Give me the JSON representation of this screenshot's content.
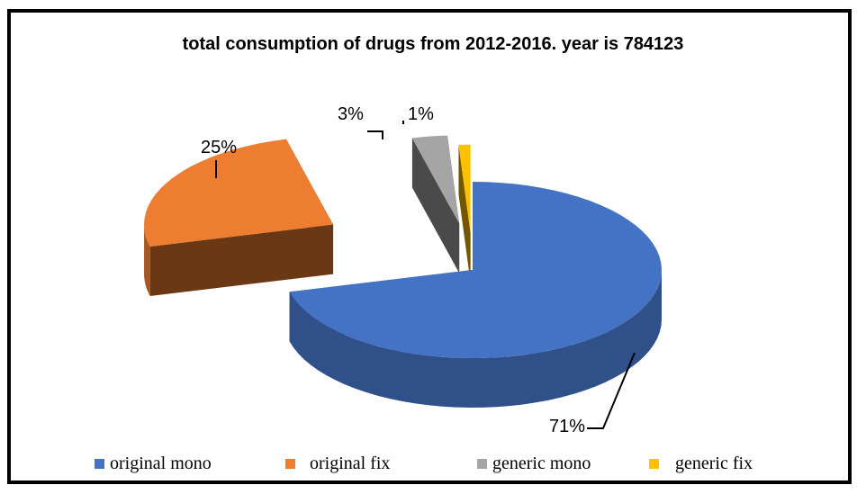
{
  "chart_data": {
    "type": "pie",
    "title": "total consumption of drugs from 2012-2016. year is 784123",
    "categories": [
      "original mono",
      "original fix",
      "generic mono",
      "generic fix"
    ],
    "values": [
      71,
      25,
      3,
      1
    ],
    "data_labels": [
      "71%",
      "25%",
      "3%",
      "1%"
    ],
    "colors": [
      "#4472C4",
      "#ED7D31",
      "#A5A5A5",
      "#FFC000"
    ],
    "legend_placement": "bottom",
    "style": "3d-exploded"
  }
}
